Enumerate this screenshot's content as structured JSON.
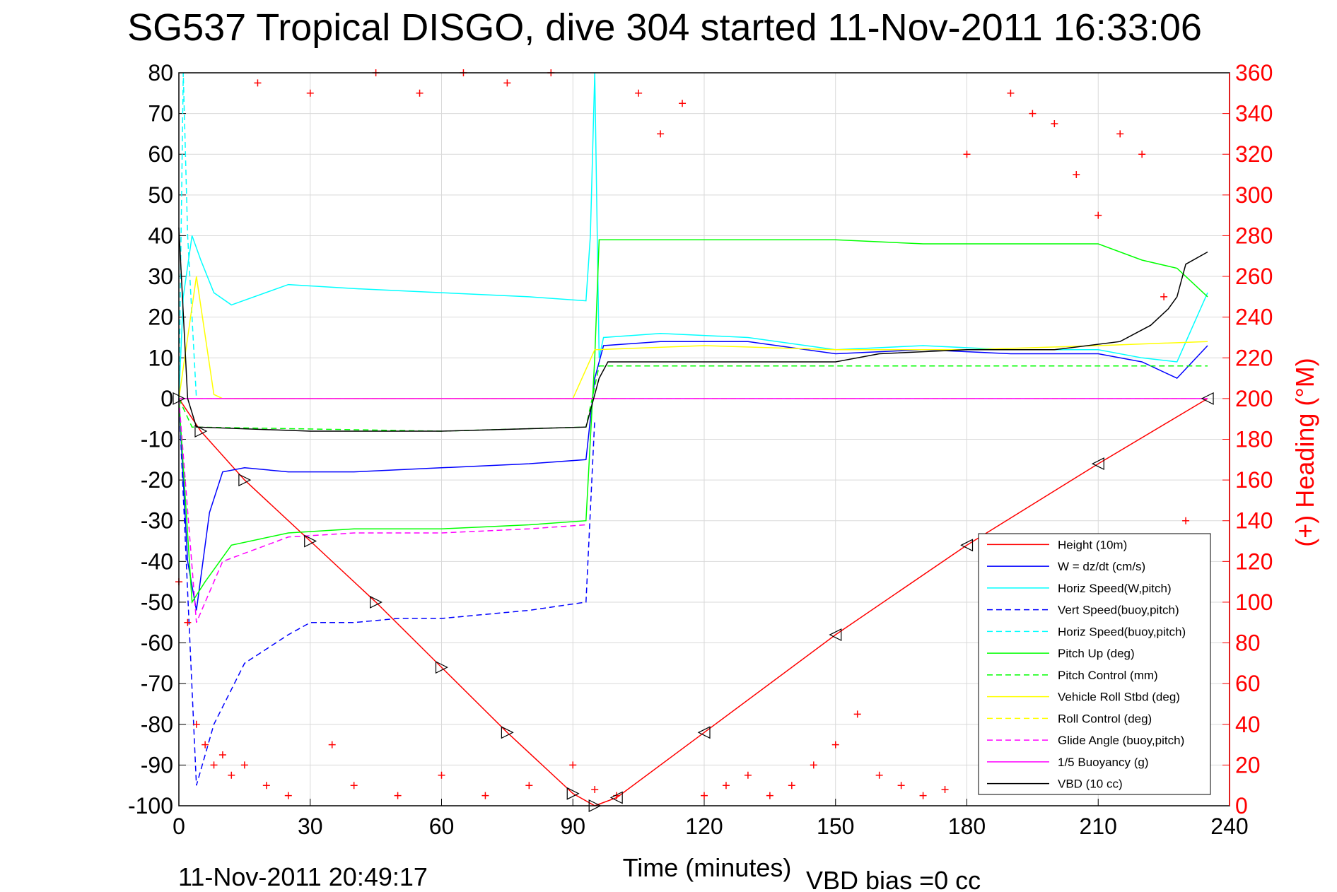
{
  "chart_data": {
    "type": "line",
    "title": "SG537 Tropical DISGO, dive 304 started 11-Nov-2011 16:33:06",
    "xlabel": "Time (minutes)",
    "ylabel_right": "(+) Heading (°M)",
    "xlim": [
      0,
      240
    ],
    "ylim_left": [
      -100,
      80
    ],
    "ylim_right": [
      0,
      360
    ],
    "xticks": [
      "0",
      "30",
      "60",
      "90",
      "120",
      "150",
      "180",
      "210",
      "240"
    ],
    "yticks_left": [
      "80",
      "70",
      "60",
      "50",
      "40",
      "30",
      "20",
      "10",
      "0",
      "-10",
      "-20",
      "-30",
      "-40",
      "-50",
      "-60",
      "-70",
      "-80",
      "-90",
      "-100"
    ],
    "yticks_right": [
      "360",
      "340",
      "320",
      "300",
      "280",
      "260",
      "240",
      "220",
      "200",
      "180",
      "160",
      "140",
      "120",
      "100",
      "80",
      "60",
      "40",
      "20",
      "0"
    ],
    "legend_position": "lower-right",
    "grid": true,
    "series": [
      {
        "name": "Height (10m)",
        "color": "#ff0000",
        "dash": "solid",
        "x": [
          0,
          5,
          15,
          30,
          45,
          60,
          75,
          90,
          95,
          100,
          120,
          150,
          180,
          210,
          235
        ],
        "y": [
          0,
          -8,
          -20,
          -35,
          -50,
          -66,
          -82,
          -97,
          -100,
          -98,
          -82,
          -58,
          -36,
          -16,
          0
        ]
      },
      {
        "name": "W = dz/dt (cm/s)",
        "color": "#0000ff",
        "dash": "solid",
        "x": [
          0,
          2,
          4,
          7,
          10,
          15,
          25,
          40,
          60,
          80,
          93,
          95,
          97,
          110,
          130,
          150,
          170,
          190,
          210,
          220,
          228,
          235
        ],
        "y": [
          0,
          -40,
          -52,
          -28,
          -18,
          -17,
          -18,
          -18,
          -17,
          -16,
          -15,
          5,
          13,
          14,
          14,
          11,
          12,
          11,
          11,
          9,
          5,
          13
        ]
      },
      {
        "name": "Horiz Speed(W,pitch)",
        "color": "#00ffff",
        "dash": "solid",
        "x": [
          0,
          1,
          3,
          5,
          8,
          12,
          25,
          40,
          60,
          80,
          93,
          94,
          95,
          96,
          97,
          110,
          130,
          150,
          170,
          190,
          210,
          220,
          228,
          235
        ],
        "y": [
          0,
          25,
          40,
          34,
          26,
          23,
          28,
          27,
          26,
          25,
          24,
          40,
          80,
          10,
          15,
          16,
          15,
          12,
          13,
          12,
          12,
          10,
          9,
          26
        ]
      },
      {
        "name": "Vert Speed(buoy,pitch)",
        "color": "#0000ff",
        "dash": "dashed",
        "x": [
          0,
          4,
          8,
          15,
          25,
          30,
          40,
          50,
          60,
          70,
          80,
          93,
          95
        ],
        "y": [
          0,
          -95,
          -80,
          -65,
          -58,
          -55,
          -55,
          -54,
          -54,
          -53,
          -52,
          -50,
          -5
        ]
      },
      {
        "name": "Horiz Speed(buoy,pitch)",
        "color": "#00ffff",
        "dash": "dashed",
        "x": [
          0,
          1,
          2,
          3,
          4
        ],
        "y": [
          0,
          80,
          40,
          20,
          0
        ]
      },
      {
        "name": "Pitch Up (deg)",
        "color": "#00ff00",
        "dash": "solid",
        "x": [
          0,
          3,
          6,
          12,
          25,
          40,
          60,
          80,
          93,
          95,
          96,
          110,
          130,
          150,
          170,
          190,
          210,
          220,
          228,
          235
        ],
        "y": [
          0,
          -50,
          -45,
          -36,
          -33,
          -32,
          -32,
          -31,
          -30,
          10,
          39,
          39,
          39,
          39,
          38,
          38,
          38,
          34,
          32,
          25
        ]
      },
      {
        "name": "Pitch Control (mm)",
        "color": "#00ff00",
        "dash": "dashed",
        "x": [
          0,
          3,
          60,
          93,
          96,
          150,
          235
        ],
        "y": [
          0,
          -7,
          -8,
          -7,
          8,
          8,
          8
        ]
      },
      {
        "name": "Vehicle Roll Stbd (deg)",
        "color": "#ffff00",
        "dash": "solid",
        "x": [
          0,
          4,
          8,
          10,
          30,
          60,
          90,
          95,
          120,
          150,
          180,
          210,
          235
        ],
        "y": [
          0,
          30,
          1,
          0,
          0,
          0,
          0,
          12,
          13,
          12,
          12,
          13,
          14
        ]
      },
      {
        "name": "Roll Control (deg)",
        "color": "#ffff00",
        "dash": "dashed",
        "x": [
          0,
          30,
          95,
          235
        ],
        "y": [
          0,
          0,
          0,
          0
        ]
      },
      {
        "name": "Glide Angle (buoy,pitch)",
        "color": "#ff00ff",
        "dash": "dashed",
        "x": [
          0,
          4,
          10,
          25,
          40,
          60,
          80,
          93
        ],
        "y": [
          0,
          -55,
          -40,
          -34,
          -33,
          -33,
          -32,
          -31
        ]
      },
      {
        "name": "1/5 Buoyancy (g)",
        "color": "#ff00ff",
        "dash": "solid",
        "x": [
          0,
          95,
          235
        ],
        "y": [
          0,
          0,
          0
        ]
      },
      {
        "name": "VBD (10 cc)",
        "color": "#000000",
        "dash": "solid",
        "x": [
          0,
          2,
          4,
          30,
          60,
          93,
          96,
          98,
          150,
          160,
          180,
          200,
          215,
          222,
          226,
          228,
          230,
          235
        ],
        "y": [
          42,
          0,
          -7,
          -8,
          -8,
          -7,
          5,
          9,
          9,
          11,
          12,
          12,
          14,
          18,
          22,
          25,
          33,
          36
        ]
      }
    ],
    "heading_series": {
      "name": "(+) Heading",
      "color": "#ff0000",
      "marker": "+",
      "axis": "right",
      "x": [
        0,
        2,
        4,
        6,
        8,
        10,
        12,
        15,
        18,
        20,
        25,
        30,
        35,
        40,
        45,
        50,
        55,
        60,
        65,
        70,
        75,
        80,
        85,
        90,
        95,
        100,
        105,
        110,
        115,
        120,
        125,
        130,
        135,
        140,
        145,
        150,
        155,
        160,
        165,
        170,
        175,
        180,
        185,
        190,
        195,
        200,
        205,
        210,
        215,
        220,
        225,
        230
      ],
      "y": [
        110,
        90,
        40,
        30,
        20,
        25,
        15,
        20,
        355,
        10,
        5,
        350,
        30,
        10,
        360,
        5,
        350,
        15,
        360,
        5,
        355,
        10,
        360,
        20,
        8,
        5,
        350,
        330,
        345,
        5,
        10,
        15,
        5,
        10,
        20,
        30,
        45,
        15,
        10,
        5,
        8,
        320,
        10,
        350,
        340,
        335,
        310,
        290,
        330,
        320,
        250,
        140
      ]
    },
    "markers": {
      "color": "#000000",
      "symbol": "triangle",
      "x": [
        0,
        5,
        15,
        30,
        45,
        60,
        75,
        90,
        95,
        100,
        120,
        150,
        180,
        210,
        235
      ],
      "y": [
        0,
        -8,
        -20,
        -35,
        -50,
        -66,
        -82,
        -97,
        -100,
        -98,
        -82,
        -58,
        -36,
        -16,
        0
      ]
    },
    "annotations": {
      "timestamp": "11-Nov-2011 20:49:17",
      "vbd_bias": "VBD bias =0 cc"
    }
  }
}
